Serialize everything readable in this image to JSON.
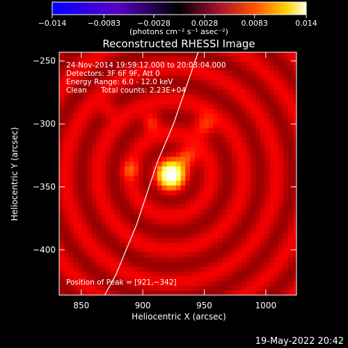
{
  "chart_data": {
    "type": "heatmap",
    "title": "Reconstructed RHESSI Image",
    "xlabel": "Heliocentric X (arcsec)",
    "ylabel": "Heliocentric Y (arcsec)",
    "xlim": [
      832,
      1025
    ],
    "ylim": [
      -436,
      -243
    ],
    "xticks": [
      850,
      900,
      950,
      1000
    ],
    "yticks": [
      -250,
      -300,
      -350,
      -400
    ],
    "xtick_labels": [
      "850",
      "900",
      "950",
      "1000"
    ],
    "ytick_labels": [
      "−250",
      "−300",
      "−350",
      "−400"
    ],
    "colorbar": {
      "colormap": "hot",
      "range": [
        -0.014,
        0.014
      ],
      "ticks": [
        -0.014,
        -0.0083,
        -0.0028,
        0.0028,
        0.0083,
        0.014
      ],
      "tick_labels": [
        "−0.014",
        "−0.0083",
        "−0.0028",
        "0.0028",
        "0.0083",
        "0.014"
      ],
      "unit_label": "(photons cm⁻² s⁻¹ asec⁻²)"
    },
    "annotations": {
      "time_range": "24-Nov-2014 19:59:12.000 to 20:03:04.000",
      "detectors": "Detectors: 3F 6F 9F, Att 0",
      "energy": "Energy Range: 6.0 - 12.0 keV",
      "method": "Clean",
      "counts": "Total counts: 2.23E+04",
      "peak": "Position of Peak = [921,−342]"
    },
    "peak": {
      "x": 921,
      "y": -342
    },
    "sources": [
      {
        "x": 921,
        "y": -342,
        "amp": 1.0,
        "width": 7
      },
      {
        "x": 934,
        "y": -328,
        "amp": 0.35,
        "width": 6
      },
      {
        "x": 905,
        "y": -300,
        "amp": 0.28,
        "width": 5
      },
      {
        "x": 948,
        "y": -303,
        "amp": 0.3,
        "width": 6
      },
      {
        "x": 888,
        "y": -338,
        "amp": 0.22,
        "width": 5
      },
      {
        "x": 870,
        "y": -290,
        "amp": 0.18,
        "width": 5
      }
    ],
    "limb_curve": [
      [
        869,
        -436
      ],
      [
        878,
        -420
      ],
      [
        895,
        -380
      ],
      [
        912,
        -330
      ],
      [
        925,
        -300
      ],
      [
        945,
        -243
      ]
    ],
    "timestamp": "19-May-2022 20:42"
  }
}
